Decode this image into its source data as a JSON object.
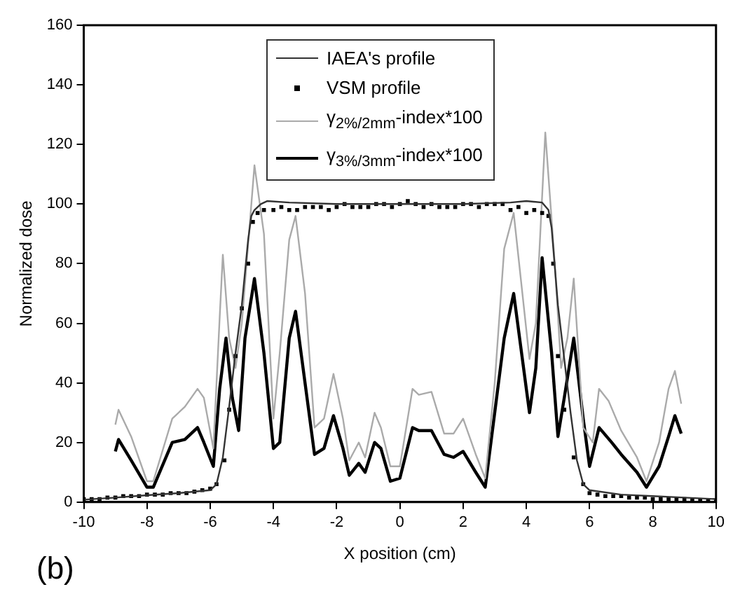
{
  "chart_data": {
    "type": "line",
    "xlabel": "X position (cm)",
    "ylabel": "Normalized dose",
    "annotations": [
      "(b)"
    ],
    "xlim": [
      -10,
      10
    ],
    "xticks": [
      -10,
      -8,
      -6,
      -4,
      -2,
      0,
      2,
      4,
      6,
      8,
      10
    ],
    "ylim": [
      0,
      160
    ],
    "yticks": [
      0,
      20,
      40,
      60,
      80,
      100,
      120,
      140,
      160
    ],
    "grid": false,
    "legend": "top right",
    "series": [
      {
        "name": "IAEA's profile",
        "color": "#333333",
        "marker": "none",
        "x": [
          -10,
          -9,
          -8,
          -7,
          -6,
          -5.8,
          -5.6,
          -5.4,
          -5.2,
          -5,
          -4.8,
          -4.7,
          -4.6,
          -4.4,
          -4.2,
          -3.5,
          -2,
          0,
          2,
          3.5,
          4,
          4.5,
          4.7,
          4.8,
          5,
          5.2,
          5.4,
          5.6,
          5.8,
          6,
          7,
          8,
          9,
          10
        ],
        "values": [
          0.8,
          1.5,
          2.3,
          3,
          4,
          6,
          15,
          32,
          50,
          66,
          88,
          96,
          98,
          100,
          101,
          100.5,
          100,
          100,
          100,
          100.5,
          101,
          100.5,
          98,
          92,
          66,
          48,
          30,
          14,
          6,
          4,
          2.5,
          2,
          1.5,
          1
        ]
      },
      {
        "name": "VSM profile",
        "type": "scatter",
        "color": "#000000",
        "marker": "square",
        "x": [
          -10,
          -9.75,
          -9.5,
          -9.25,
          -9,
          -8.75,
          -8.5,
          -8.25,
          -8,
          -7.75,
          -7.5,
          -7.25,
          -7,
          -6.75,
          -6.5,
          -6.25,
          -6,
          -5.8,
          -5.55,
          -5.4,
          -5.2,
          -5,
          -4.8,
          -4.65,
          -4.5,
          -4.3,
          -4,
          -3.75,
          -3.5,
          -3.25,
          -3,
          -2.75,
          -2.5,
          -2.25,
          -2,
          -1.75,
          -1.5,
          -1.25,
          -1,
          -0.75,
          -0.5,
          -0.25,
          0,
          0.25,
          0.5,
          0.75,
          1,
          1.25,
          1.5,
          1.75,
          2,
          2.25,
          2.5,
          2.75,
          3,
          3.25,
          3.5,
          3.75,
          4,
          4.25,
          4.5,
          4.7,
          4.85,
          5,
          5.2,
          5.5,
          5.8,
          6,
          6.25,
          6.5,
          6.75,
          7,
          7.25,
          7.5,
          7.75,
          8,
          8.25,
          8.5,
          8.75,
          9,
          9.25,
          9.5,
          9.75,
          10
        ],
        "values": [
          1,
          1,
          1,
          1.5,
          1.5,
          2,
          2,
          2,
          2.5,
          2.5,
          2.5,
          3,
          3,
          3,
          3.5,
          4,
          4.5,
          6,
          14,
          31,
          49,
          65,
          80,
          94,
          97,
          98,
          98,
          99,
          98,
          98,
          99,
          99,
          99,
          98,
          99,
          100,
          99,
          99,
          99,
          100,
          100,
          99,
          100,
          101,
          100,
          99,
          100,
          99,
          99,
          99,
          100,
          100,
          99,
          100,
          100,
          100,
          98,
          99,
          97,
          98,
          97,
          96,
          80,
          49,
          31,
          15,
          6,
          3,
          2.5,
          2,
          2,
          2,
          1.5,
          1.5,
          1.5,
          1,
          1,
          1,
          1,
          1,
          0.5,
          0.5,
          0.5,
          0.5
        ]
      },
      {
        "name": "γ$_{2%/2mm}$-index*100",
        "color": "#aaaaaa",
        "marker": "none",
        "x": [
          -9,
          -8.9,
          -8.5,
          -8,
          -7.8,
          -7.2,
          -6.8,
          -6.4,
          -6.2,
          -5.9,
          -5.7,
          -5.6,
          -5.4,
          -5.2,
          -5,
          -4.6,
          -4.3,
          -4,
          -3.8,
          -3.5,
          -3.3,
          -3,
          -2.7,
          -2.4,
          -2.1,
          -1.8,
          -1.6,
          -1.3,
          -1.1,
          -0.8,
          -0.6,
          -0.3,
          0,
          0.4,
          0.6,
          1,
          1.4,
          1.7,
          2,
          2.4,
          2.7,
          3,
          3.3,
          3.6,
          4.1,
          4.3,
          4.6,
          4.9,
          5.1,
          5.3,
          5.5,
          5.8,
          6.1,
          6.3,
          6.6,
          7,
          7.5,
          7.8,
          8.2,
          8.5,
          8.7,
          8.9
        ],
        "values": [
          26,
          31,
          22,
          7,
          7,
          28,
          32,
          38,
          35,
          18,
          62,
          83,
          55,
          45,
          60,
          113,
          90,
          28,
          50,
          88,
          96,
          70,
          25,
          28,
          43,
          28,
          14,
          20,
          15,
          30,
          25,
          12,
          12,
          38,
          36,
          37,
          23,
          23,
          28,
          16,
          8,
          40,
          85,
          97,
          48,
          60,
          124,
          80,
          45,
          55,
          75,
          25,
          20,
          38,
          34,
          24,
          15,
          7,
          20,
          38,
          44,
          33
        ]
      },
      {
        "name": "γ$_{3%/3mm}$-index*100",
        "color": "#000000",
        "marker": "none",
        "x": [
          -9,
          -8.9,
          -8.5,
          -8,
          -7.8,
          -7.2,
          -6.8,
          -6.4,
          -6.2,
          -5.9,
          -5.7,
          -5.5,
          -5.3,
          -5.1,
          -4.9,
          -4.6,
          -4.3,
          -4,
          -3.8,
          -3.5,
          -3.3,
          -3,
          -2.7,
          -2.4,
          -2.1,
          -1.8,
          -1.6,
          -1.3,
          -1.1,
          -0.8,
          -0.6,
          -0.3,
          0,
          0.4,
          0.6,
          1,
          1.4,
          1.7,
          2,
          2.4,
          2.7,
          3,
          3.3,
          3.6,
          4.1,
          4.3,
          4.5,
          4.8,
          5,
          5.2,
          5.5,
          5.8,
          6,
          6.3,
          6.7,
          7,
          7.5,
          7.8,
          8.2,
          8.5,
          8.7,
          8.9
        ],
        "values": [
          17,
          21,
          14,
          5,
          5,
          20,
          21,
          25,
          20,
          12,
          38,
          55,
          35,
          24,
          55,
          75,
          50,
          18,
          20,
          55,
          64,
          40,
          16,
          18,
          29,
          18,
          9,
          13,
          10,
          20,
          18,
          7,
          8,
          25,
          24,
          24,
          16,
          15,
          17,
          10,
          5,
          30,
          55,
          70,
          30,
          45,
          82,
          50,
          22,
          35,
          55,
          28,
          12,
          25,
          20,
          16,
          10,
          5,
          12,
          22,
          29,
          23
        ]
      }
    ]
  }
}
